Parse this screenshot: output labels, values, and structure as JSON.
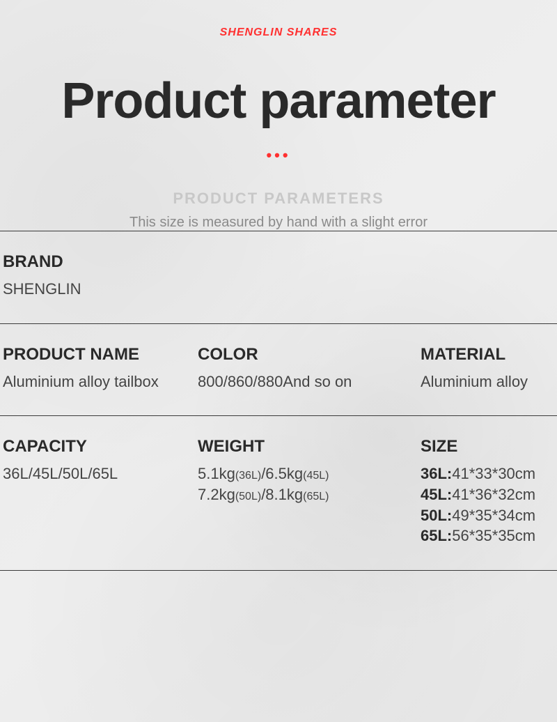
{
  "header": {
    "brand": "SHENGLIN SHARES",
    "title": "Product parameter",
    "dots": "•••",
    "ghost": "PRODUCT PARAMETERS",
    "note": "This size is measured by hand with a slight error"
  },
  "rows": {
    "brand": {
      "label": "BRAND",
      "value": "SHENGLIN"
    },
    "product_name": {
      "label": "PRODUCT NAME",
      "value": "Aluminium alloy tailbox"
    },
    "color": {
      "label": "COLOR",
      "value": "800/860/880And so on"
    },
    "material": {
      "label": "MATERIAL",
      "value": "Aluminium alloy"
    },
    "capacity": {
      "label": "CAPACITY",
      "value": "36L/45L/50L/65L"
    },
    "weight": {
      "label": "WEIGHT",
      "w1a": "5.1kg",
      "w1b": "(36L)",
      "w2a": "/6.5kg",
      "w2b": "(45L)",
      "w3a": "7.2kg",
      "w3b": "(50L)",
      "w4a": "/8.1kg",
      "w4b": "(65L)"
    },
    "size": {
      "label": "SIZE",
      "s1k": "36L:",
      "s1v": "41*33*30cm",
      "s2k": "45L:",
      "s2v": "41*36*32cm",
      "s3k": "50L:",
      "s3v": "49*35*34cm",
      "s4k": "65L:",
      "s4v": "56*35*35cm"
    }
  },
  "style": {
    "accent": "#ff3030",
    "text": "#2a2a2a",
    "muted": "#8a8a8a",
    "ghost": "#c8c8c8",
    "border": "#3a3a3a",
    "bg": "#eeeeee"
  }
}
